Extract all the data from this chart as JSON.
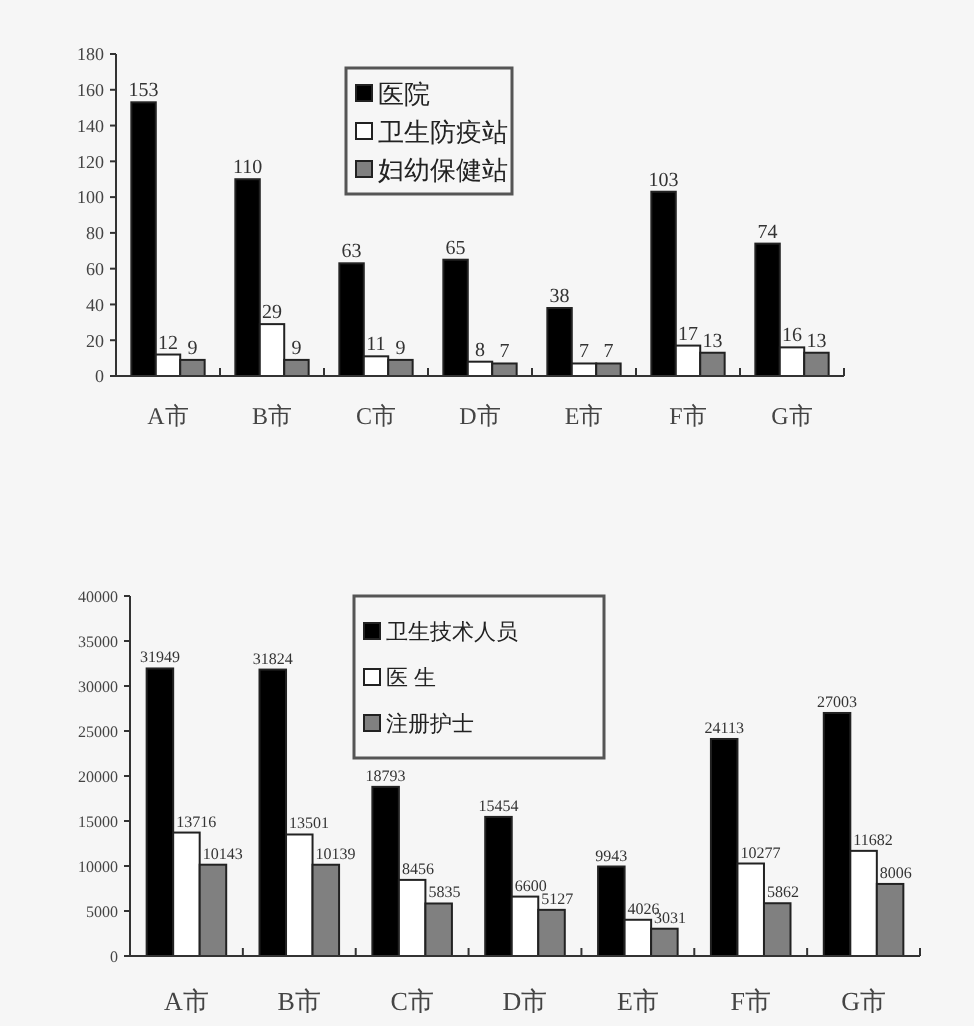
{
  "chart_data": [
    {
      "type": "bar",
      "categories": [
        "A市",
        "B市",
        "C市",
        "D市",
        "E市",
        "F市",
        "G市"
      ],
      "series": [
        {
          "name": "医院",
          "color": "#000000",
          "values": [
            153,
            110,
            63,
            65,
            38,
            103,
            74
          ]
        },
        {
          "name": "卫生防疫站",
          "color": "#ffffff",
          "values": [
            12,
            29,
            11,
            8,
            7,
            17,
            16
          ]
        },
        {
          "name": "妇幼保健站",
          "color": "#808080",
          "values": [
            9,
            9,
            9,
            7,
            7,
            13,
            13
          ]
        }
      ],
      "ylim": [
        0,
        180
      ],
      "yticks": [
        0,
        20,
        40,
        60,
        80,
        100,
        120,
        140,
        160,
        180
      ],
      "data_labels": true,
      "legend": "top",
      "grid": false
    },
    {
      "type": "bar",
      "categories": [
        "A市",
        "B市",
        "C市",
        "D市",
        "E市",
        "F市",
        "G市"
      ],
      "series": [
        {
          "name": "卫生技术人员",
          "color": "#000000",
          "values": [
            31949,
            31824,
            18793,
            15454,
            9943,
            24113,
            27003
          ]
        },
        {
          "name": "医 生",
          "color": "#ffffff",
          "values": [
            13716,
            13501,
            8456,
            6600,
            4026,
            10277,
            11682
          ]
        },
        {
          "name": "注册护士",
          "color": "#808080",
          "values": [
            10143,
            10139,
            5835,
            5127,
            3031,
            5862,
            8006
          ]
        }
      ],
      "ylim": [
        0,
        40000
      ],
      "yticks": [
        0,
        5000,
        10000,
        15000,
        20000,
        25000,
        30000,
        35000,
        40000
      ],
      "data_labels": true,
      "legend": "top",
      "grid": false
    }
  ]
}
